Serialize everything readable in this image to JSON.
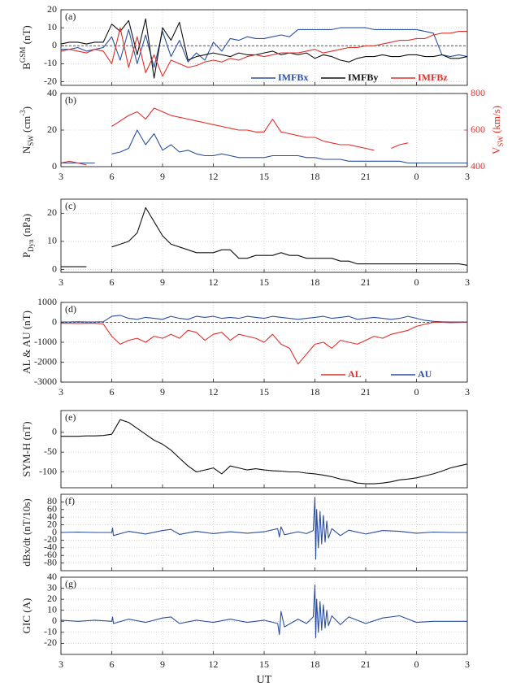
{
  "chart_data": [
    {
      "type": "line",
      "label": "(a)",
      "ylabel": [
        {
          "text": "B"
        },
        {
          "text": "GSM",
          "sup": true
        },
        {
          "text": " (nT)"
        }
      ],
      "x": [
        3,
        3.5,
        4,
        4.5,
        5,
        5.5,
        6,
        6.5,
        7,
        7.5,
        8,
        8.5,
        9,
        9.5,
        10,
        10.5,
        11,
        11.5,
        12,
        12.5,
        13,
        13.5,
        14,
        14.5,
        15,
        15.5,
        16,
        16.5,
        17,
        17.5,
        18,
        18.5,
        19,
        19.5,
        20,
        20.5,
        21,
        21.5,
        22,
        22.5,
        23,
        23.5,
        24,
        24.5,
        25,
        25.5,
        26,
        26.5,
        27
      ],
      "series": [
        {
          "name": "IMFBx",
          "color": "#2b4fa0",
          "values": [
            -2,
            -2,
            -1,
            -3,
            -2,
            -1,
            5,
            -8,
            9,
            -10,
            6,
            -12,
            8,
            -6,
            3,
            -9,
            -4,
            -8,
            2,
            -3,
            4,
            3,
            5,
            4,
            4,
            5,
            6,
            5,
            9,
            9,
            9,
            9,
            9,
            10,
            10,
            10,
            10,
            9,
            9,
            9,
            9,
            9,
            9,
            8,
            7,
            -5,
            -6,
            -5,
            -6
          ]
        },
        {
          "name": "IMFBy",
          "color": "#111111",
          "values": [
            1,
            2,
            2,
            1,
            2,
            2,
            12,
            8,
            14,
            -5,
            15,
            -18,
            10,
            3,
            13,
            -8,
            -6,
            -5,
            -4,
            -5,
            -6,
            -4,
            -5,
            -5,
            -4,
            -3,
            -5,
            -4,
            -5,
            -4,
            -7,
            -5,
            -6,
            -8,
            -9,
            -7,
            -6,
            -6,
            -5,
            -6,
            -6,
            -5,
            -5,
            -6,
            -6,
            -5,
            -7,
            -7,
            -6
          ]
        },
        {
          "name": "IMFBz",
          "color": "#e0302a",
          "values": [
            -3,
            -2,
            -3,
            -4,
            -2,
            -3,
            -10,
            10,
            -12,
            5,
            -15,
            -5,
            -17,
            -8,
            -10,
            -12,
            -11,
            -9,
            -8,
            -9,
            -7,
            -8,
            -6,
            -5,
            -6,
            -5,
            -4,
            -4,
            -4,
            -3,
            -2,
            -4,
            -3,
            -2,
            -1,
            -1,
            0,
            0,
            1,
            2,
            3,
            3,
            4,
            4,
            6,
            7,
            7,
            8,
            8
          ]
        }
      ],
      "xlim": [
        3,
        27
      ],
      "xgrid": [
        3,
        6,
        9,
        12,
        15,
        18,
        21,
        24,
        27
      ],
      "ylim": [
        -22,
        20
      ],
      "yticks": [
        -20,
        -10,
        0,
        10,
        20
      ],
      "grid": true,
      "zero_line": true,
      "legend": "lower right"
    },
    {
      "type": "line",
      "label": "(b)",
      "ylabel": [
        {
          "text": "N"
        },
        {
          "text": "SW",
          "sub": true
        },
        {
          "text": " (cm"
        },
        {
          "text": "-3",
          "sup": true
        },
        {
          "text": ")"
        }
      ],
      "y2label": [
        {
          "text": "V"
        },
        {
          "text": "SW",
          "sub": true
        },
        {
          "text": " (km/s)"
        }
      ],
      "x": [
        3,
        3.5,
        4,
        4.5,
        5,
        5.5,
        6,
        6.5,
        7,
        7.5,
        8,
        8.5,
        9,
        9.5,
        10,
        10.5,
        11,
        11.5,
        12,
        12.5,
        13,
        13.5,
        14,
        14.5,
        15,
        15.5,
        16,
        16.5,
        17,
        17.5,
        18,
        18.5,
        19,
        19.5,
        20,
        20.5,
        21,
        21.5,
        22,
        22.5,
        23,
        23.5,
        24,
        24.5,
        25,
        25.5,
        26,
        26.5,
        27
      ],
      "series": [
        {
          "color": "#2b4fa0",
          "values": [
            2,
            2,
            2,
            2,
            2,
            null,
            7,
            8,
            10,
            20,
            12,
            18,
            9,
            12,
            8,
            9,
            7,
            6,
            6,
            7,
            6,
            5,
            5,
            5,
            5,
            6,
            6,
            6,
            6,
            5,
            5,
            4,
            4,
            4,
            3,
            3,
            3,
            3,
            3,
            3,
            3,
            2,
            2,
            2,
            2,
            2,
            2,
            2,
            2
          ]
        },
        {
          "color": "#e0302a",
          "axis": "y2",
          "values": [
            420,
            430,
            420,
            410,
            null,
            null,
            620,
            650,
            680,
            700,
            660,
            720,
            700,
            680,
            670,
            660,
            650,
            640,
            630,
            620,
            610,
            600,
            600,
            590,
            590,
            660,
            590,
            580,
            570,
            560,
            560,
            540,
            530,
            520,
            520,
            510,
            500,
            490,
            null,
            500,
            520,
            530,
            null,
            null,
            null,
            null,
            null,
            null,
            null
          ]
        }
      ],
      "xlim": [
        3,
        27
      ],
      "xticks": [
        3,
        6,
        9,
        12,
        15,
        18,
        21,
        {
          "value": 24,
          "label": "0"
        },
        {
          "value": 27,
          "label": "3"
        }
      ],
      "ylim": [
        0,
        40
      ],
      "yticks": [
        0,
        20,
        40
      ],
      "y2lim": [
        400,
        800
      ],
      "y2ticks": [
        400,
        600,
        800
      ],
      "y2color": "#e0302a",
      "grid": true
    },
    {
      "type": "line",
      "label": "(c)",
      "ylabel": [
        {
          "text": "P"
        },
        {
          "text": "Dyn",
          "sub": true
        },
        {
          "text": " (nPa)"
        }
      ],
      "x": [
        3,
        3.5,
        4,
        4.5,
        5,
        5.5,
        6,
        6.5,
        7,
        7.5,
        8,
        8.5,
        9,
        9.5,
        10,
        10.5,
        11,
        11.5,
        12,
        12.5,
        13,
        13.5,
        14,
        14.5,
        15,
        15.5,
        16,
        16.5,
        17,
        17.5,
        18,
        18.5,
        19,
        19.5,
        20,
        20.5,
        21,
        21.5,
        22,
        22.5,
        23,
        23.5,
        24,
        24.5,
        25,
        25.5,
        26,
        26.5,
        27
      ],
      "series": [
        {
          "color": "#111111",
          "values": [
            1,
            1,
            1,
            1,
            null,
            null,
            8,
            9,
            10,
            13,
            22,
            17,
            12,
            9,
            8,
            7,
            6,
            6,
            6,
            7,
            7,
            4,
            4,
            5,
            5,
            5,
            6,
            5,
            5,
            4,
            4,
            4,
            4,
            3,
            3,
            2,
            2,
            2,
            2,
            2,
            2,
            2,
            2,
            2,
            2,
            2,
            2,
            2,
            1.5
          ]
        }
      ],
      "xlim": [
        3,
        27
      ],
      "xticks": [
        3,
        6,
        9,
        12,
        15,
        18,
        21,
        {
          "value": 24,
          "label": "0"
        },
        {
          "value": 27,
          "label": "3"
        }
      ],
      "ylim": [
        -1,
        25
      ],
      "yticks": [
        0,
        10,
        20
      ],
      "grid": true
    },
    {
      "type": "line",
      "label": "(d)",
      "ylabel": [
        {
          "text": "AL & AU (nT)"
        }
      ],
      "x": [
        3,
        3.5,
        4,
        4.5,
        5,
        5.5,
        6,
        6.5,
        7,
        7.5,
        8,
        8.5,
        9,
        9.5,
        10,
        10.5,
        11,
        11.5,
        12,
        12.5,
        13,
        13.5,
        14,
        14.5,
        15,
        15.5,
        16,
        16.5,
        17,
        17.5,
        18,
        18.5,
        19,
        19.5,
        20,
        20.5,
        21,
        21.5,
        22,
        22.5,
        23,
        23.5,
        24,
        24.5,
        25,
        25.5,
        26,
        26.5,
        27
      ],
      "series": [
        {
          "name": "AL",
          "color": "#e0302a",
          "values": [
            -50,
            -50,
            -60,
            -50,
            -50,
            -80,
            -700,
            -1100,
            -900,
            -800,
            -1000,
            -700,
            -800,
            -600,
            -800,
            -400,
            -500,
            -900,
            -600,
            -500,
            -900,
            -600,
            -700,
            -800,
            -1000,
            -600,
            -1100,
            -1300,
            -2100,
            -1600,
            -1100,
            -1000,
            -1300,
            -900,
            -1000,
            -1100,
            -900,
            -700,
            -800,
            -600,
            -500,
            -400,
            -200,
            -100,
            0,
            0,
            -20,
            -10,
            0
          ]
        },
        {
          "name": "AU",
          "color": "#2b4fa0",
          "values": [
            20,
            20,
            30,
            20,
            20,
            30,
            300,
            350,
            200,
            150,
            250,
            200,
            150,
            300,
            200,
            150,
            300,
            250,
            300,
            200,
            250,
            200,
            300,
            250,
            200,
            300,
            250,
            200,
            150,
            200,
            250,
            300,
            200,
            250,
            300,
            150,
            200,
            250,
            200,
            150,
            200,
            300,
            200,
            100,
            50,
            30,
            20,
            20,
            20
          ]
        }
      ],
      "xlim": [
        3,
        27
      ],
      "xticks": [
        3,
        6,
        9,
        12,
        15,
        18,
        21,
        {
          "value": 24,
          "label": "0"
        },
        {
          "value": 27,
          "label": "3"
        }
      ],
      "ylim": [
        -3000,
        1000
      ],
      "yticks": [
        -3000,
        -2000,
        -1000,
        0,
        1000
      ],
      "grid": true,
      "zero_line": true,
      "legend": "lower right"
    },
    {
      "type": "line",
      "label": "(e)",
      "ylabel": [
        {
          "text": "SYM-H (nT)"
        }
      ],
      "x": [
        3,
        3.5,
        4,
        4.5,
        5,
        5.5,
        6,
        6.5,
        7,
        7.5,
        8,
        8.5,
        9,
        9.5,
        10,
        10.5,
        11,
        11.5,
        12,
        12.5,
        13,
        13.5,
        14,
        14.5,
        15,
        15.5,
        16,
        16.5,
        17,
        17.5,
        18,
        18.5,
        19,
        19.5,
        20,
        20.5,
        21,
        21.5,
        22,
        22.5,
        23,
        23.5,
        24,
        24.5,
        25,
        25.5,
        26,
        26.5,
        27
      ],
      "series": [
        {
          "color": "#111111",
          "values": [
            -10,
            -10,
            -10,
            -9,
            -9,
            -8,
            -5,
            32,
            25,
            10,
            -5,
            -20,
            -30,
            -45,
            -65,
            -85,
            -100,
            -95,
            -90,
            -105,
            -85,
            -90,
            -95,
            -92,
            -95,
            -97,
            -98,
            -100,
            -100,
            -103,
            -105,
            -108,
            -112,
            -118,
            -122,
            -128,
            -130,
            -130,
            -128,
            -125,
            -120,
            -118,
            -115,
            -110,
            -105,
            -98,
            -90,
            -85,
            -80
          ]
        }
      ],
      "xlim": [
        3,
        27
      ],
      "xgrid": [
        3,
        6,
        9,
        12,
        15,
        18,
        21,
        24,
        27
      ],
      "ylim": [
        -140,
        55
      ],
      "yticks": [
        -100,
        -50,
        0
      ],
      "grid": true
    },
    {
      "type": "line",
      "label": "(f)",
      "ylabel": [
        {
          "text": "dBx/dt (nT/10s)"
        }
      ],
      "x": [
        3,
        4,
        5,
        6,
        6.05,
        6.1,
        7,
        8,
        9,
        9.5,
        10,
        11,
        12,
        13,
        14,
        15,
        15.8,
        15.9,
        16,
        16.2,
        17,
        17.5,
        17.9,
        18,
        18.05,
        18.1,
        18.2,
        18.3,
        18.4,
        18.5,
        18.6,
        18.7,
        18.8,
        19,
        19.5,
        20,
        21,
        22,
        23,
        24,
        25,
        26,
        27
      ],
      "series": [
        {
          "color": "#2b4fa0",
          "values": [
            0,
            1,
            0,
            0,
            12,
            -8,
            3,
            -4,
            5,
            8,
            -5,
            3,
            -3,
            2,
            -2,
            2,
            10,
            -12,
            15,
            -6,
            2,
            -3,
            5,
            92,
            -70,
            60,
            -40,
            55,
            -30,
            45,
            -25,
            30,
            -15,
            10,
            -8,
            6,
            -4,
            5,
            3,
            -2,
            1,
            0,
            0
          ]
        }
      ],
      "xlim": [
        3,
        27
      ],
      "xgrid": [
        3,
        6,
        9,
        12,
        15,
        18,
        21,
        24,
        27
      ],
      "ylim": [
        -100,
        100
      ],
      "yticks": [
        -80,
        -60,
        -40,
        -20,
        0,
        20,
        40,
        60,
        80
      ],
      "grid": true
    },
    {
      "type": "line",
      "label": "(g)",
      "ylabel": [
        {
          "text": "GIC (A)"
        }
      ],
      "xlabel": "UT",
      "x": [
        3,
        4,
        5,
        6,
        6.05,
        6.1,
        7,
        8,
        9,
        9.5,
        10,
        11,
        12,
        13,
        14,
        15,
        15.8,
        15.9,
        16,
        16.2,
        17,
        17.5,
        17.9,
        18,
        18.05,
        18.1,
        18.2,
        18.3,
        18.4,
        18.5,
        18.6,
        18.7,
        18.8,
        19,
        19.5,
        20,
        21,
        22,
        23,
        24,
        25,
        26,
        27
      ],
      "series": [
        {
          "color": "#2b4fa0",
          "values": [
            1,
            0,
            1,
            0,
            4,
            -2,
            2,
            -1,
            3,
            4,
            -2,
            1,
            -1,
            2,
            -1,
            1,
            -2,
            -12,
            9,
            -5,
            2,
            -2,
            4,
            33,
            -15,
            20,
            -10,
            18,
            -8,
            15,
            -6,
            10,
            -4,
            5,
            -3,
            4,
            -2,
            3,
            5,
            -1,
            0,
            0,
            0
          ]
        }
      ],
      "xlim": [
        3,
        27
      ],
      "xticks": [
        3,
        6,
        9,
        12,
        15,
        18,
        21,
        {
          "value": 24,
          "label": "0"
        },
        {
          "value": 27,
          "label": "3"
        }
      ],
      "ylim": [
        -30,
        40
      ],
      "yticks": [
        -20,
        -10,
        0,
        10,
        20,
        30,
        40
      ],
      "grid": true
    }
  ]
}
